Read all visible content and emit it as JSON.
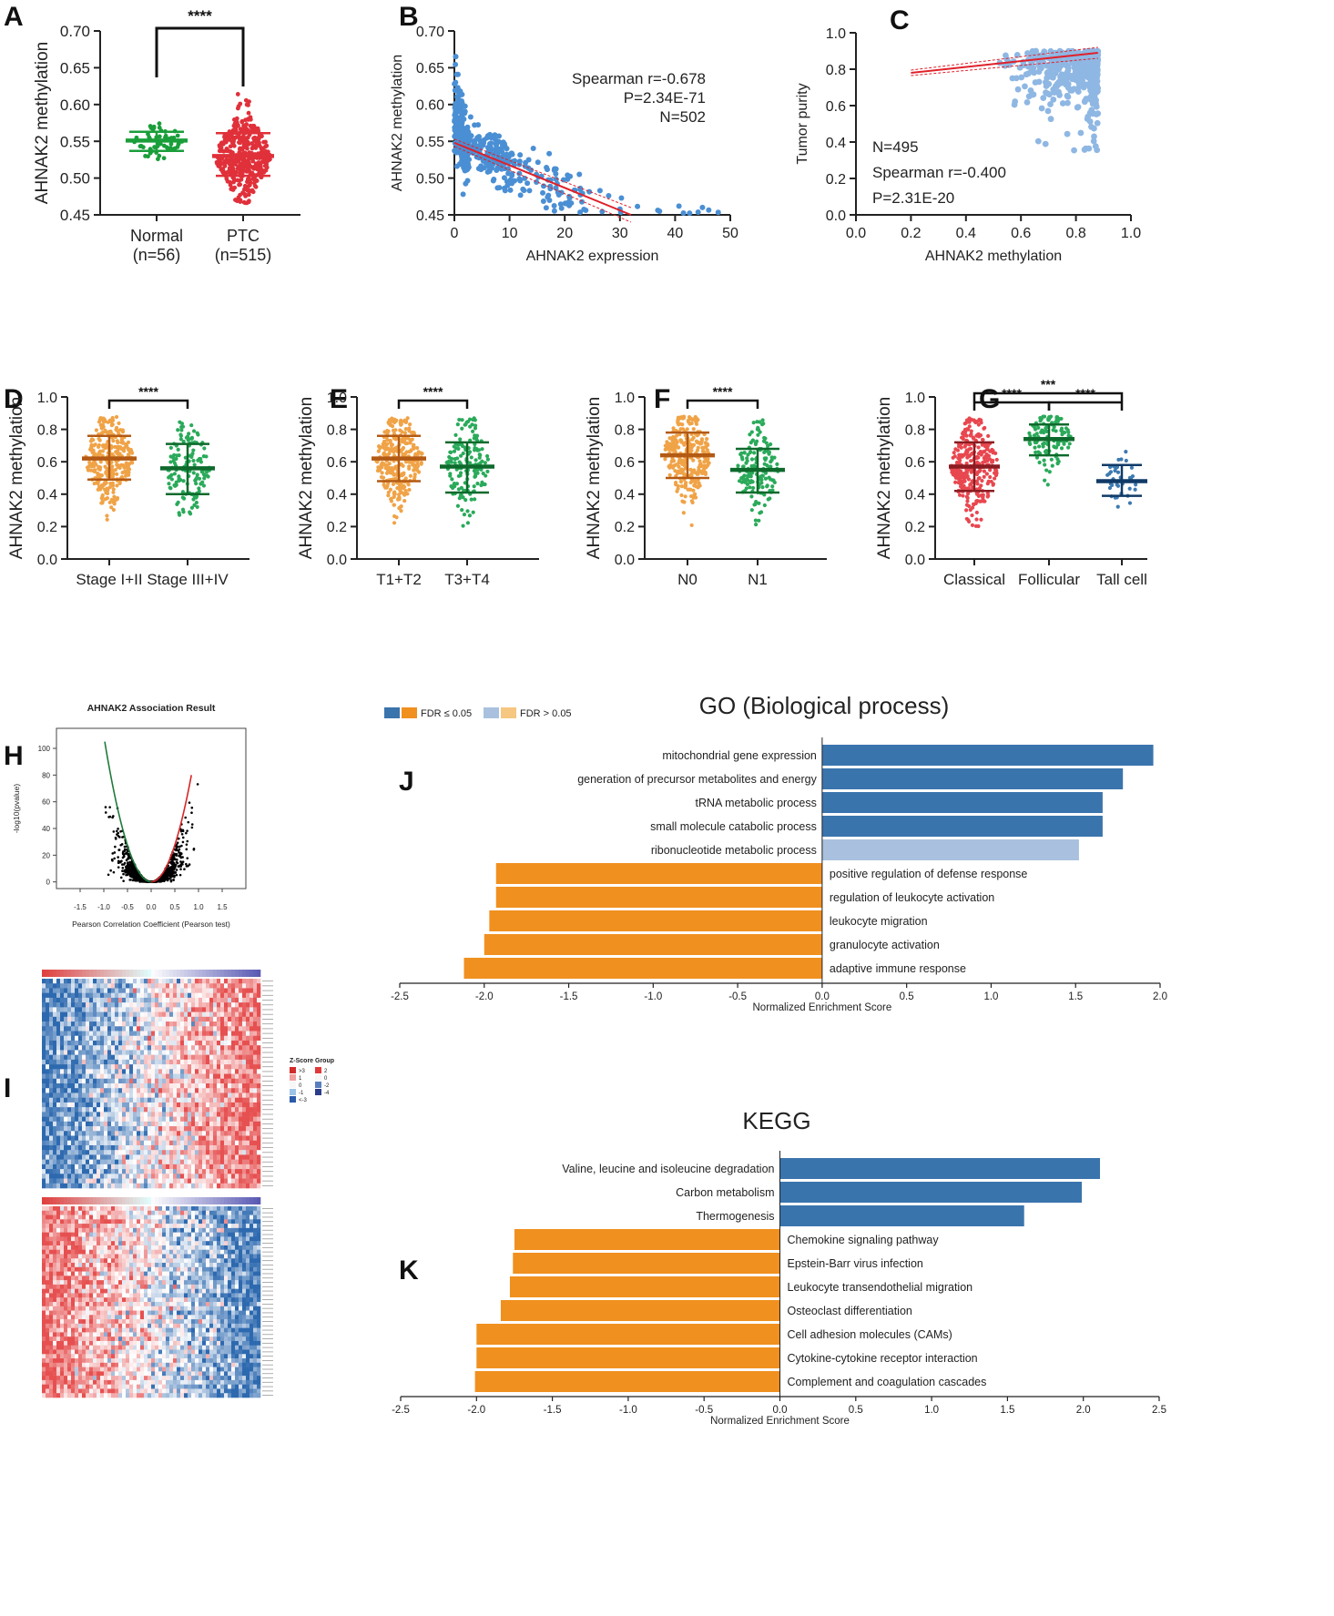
{
  "chart_data": [
    {
      "panel": "A",
      "type": "scatter",
      "ylabel": "AHNAK2 methylation",
      "ylim": [
        0.45,
        0.7
      ],
      "yticks": [
        "0.45",
        "0.50",
        "0.55",
        "0.60",
        "0.65",
        "0.70"
      ],
      "groups": [
        {
          "label": "Normal",
          "n_label": "(n=56)",
          "mean": 0.551,
          "sd_low": 0.537,
          "sd_high": 0.563,
          "min": 0.52,
          "max": 0.585,
          "color": "#1a9e3a"
        },
        {
          "label": "PTC",
          "n_label": "(n=515)",
          "mean": 0.53,
          "sd_low": 0.503,
          "sd_high": 0.561,
          "min": 0.465,
          "max": 0.685,
          "color": "#e0303a"
        }
      ],
      "significance": "****"
    },
    {
      "panel": "B",
      "type": "scatter",
      "xlabel": "AHNAK2 expression",
      "ylabel": "AHNAK2 methylation",
      "xlim": [
        0,
        50
      ],
      "ylim": [
        0.45,
        0.7
      ],
      "xticks": [
        "0",
        "10",
        "20",
        "30",
        "40",
        "50"
      ],
      "yticks": [
        "0.45",
        "0.50",
        "0.55",
        "0.60",
        "0.65",
        "0.70"
      ],
      "annotations": [
        "Spearman r=-0.678",
        "P=2.34E-71",
        "N=502"
      ],
      "fit": {
        "x0": 0,
        "y0": 0.548,
        "x1": 32,
        "y1": 0.45
      },
      "color": "#4a8fd4"
    },
    {
      "panel": "C",
      "type": "scatter",
      "xlabel": "AHNAK2 methylation",
      "ylabel": "Tumor purity",
      "xlim": [
        0.0,
        1.0
      ],
      "ylim": [
        0.0,
        1.0
      ],
      "xticks": [
        "0.0",
        "0.2",
        "0.4",
        "0.6",
        "0.8",
        "1.0"
      ],
      "yticks": [
        "0.0",
        "0.2",
        "0.4",
        "0.6",
        "0.8",
        "1.0"
      ],
      "annotations": [
        "N=495",
        "Spearman r=-0.400",
        "P=2.31E-20"
      ],
      "fit": {
        "x0": 0.2,
        "y0": 0.78,
        "x1": 0.88,
        "y1": 0.89
      },
      "color": "#8fb7e3"
    },
    {
      "panel": "D",
      "type": "scatter",
      "ylabel": "AHNAK2 methylation",
      "ylim": [
        0.0,
        1.0
      ],
      "yticks": [
        "0.0",
        "0.2",
        "0.4",
        "0.6",
        "0.8",
        "1.0"
      ],
      "groups": [
        {
          "label": "Stage I+II",
          "mean": 0.62,
          "sd_low": 0.49,
          "sd_high": 0.76,
          "min": 0.2,
          "max": 0.88,
          "color": "#f0a347",
          "bar": "#b35a14"
        },
        {
          "label": "Stage III+IV",
          "mean": 0.56,
          "sd_low": 0.4,
          "sd_high": 0.71,
          "min": 0.27,
          "max": 0.86,
          "color": "#2aaa5a",
          "bar": "#0e6a2c"
        }
      ],
      "significance": [
        {
          "from": 0,
          "to": 1,
          "text": "****"
        }
      ]
    },
    {
      "panel": "E",
      "type": "scatter",
      "ylabel": "AHNAK2 methylation",
      "ylim": [
        0.0,
        1.0
      ],
      "yticks": [
        "0.0",
        "0.2",
        "0.4",
        "0.6",
        "0.8",
        "1.0"
      ],
      "groups": [
        {
          "label": "T1+T2",
          "mean": 0.62,
          "sd_low": 0.48,
          "sd_high": 0.76,
          "min": 0.2,
          "max": 0.87,
          "color": "#f0a347",
          "bar": "#b35a14"
        },
        {
          "label": "T3+T4",
          "mean": 0.57,
          "sd_low": 0.41,
          "sd_high": 0.72,
          "min": 0.2,
          "max": 0.87,
          "color": "#2aaa5a",
          "bar": "#0e6a2c"
        }
      ],
      "significance": [
        {
          "from": 0,
          "to": 1,
          "text": "****"
        }
      ]
    },
    {
      "panel": "F",
      "type": "scatter",
      "ylabel": "AHNAK2 methylation",
      "ylim": [
        0.0,
        1.0
      ],
      "yticks": [
        "0.0",
        "0.2",
        "0.4",
        "0.6",
        "0.8",
        "1.0"
      ],
      "groups": [
        {
          "label": "N0",
          "mean": 0.64,
          "sd_low": 0.5,
          "sd_high": 0.78,
          "min": 0.2,
          "max": 0.88,
          "color": "#f0a347",
          "bar": "#b35a14"
        },
        {
          "label": "N1",
          "mean": 0.55,
          "sd_low": 0.41,
          "sd_high": 0.68,
          "min": 0.2,
          "max": 0.86,
          "color": "#2aaa5a",
          "bar": "#0e6a2c"
        }
      ],
      "significance": [
        {
          "from": 0,
          "to": 1,
          "text": "****"
        }
      ]
    },
    {
      "panel": "G",
      "type": "scatter",
      "ylabel": "AHNAK2 methylation",
      "ylim": [
        0.0,
        1.0
      ],
      "yticks": [
        "0.0",
        "0.2",
        "0.4",
        "0.6",
        "0.8",
        "1.0"
      ],
      "groups": [
        {
          "label": "Classical",
          "mean": 0.57,
          "sd_low": 0.42,
          "sd_high": 0.72,
          "min": 0.2,
          "max": 0.87,
          "color": "#e8474f",
          "bar": "#8a1c22"
        },
        {
          "label": "Follicular",
          "mean": 0.74,
          "sd_low": 0.64,
          "sd_high": 0.83,
          "min": 0.37,
          "max": 0.88,
          "color": "#2aaa5a",
          "bar": "#0e6a2c"
        },
        {
          "label": "Tall cell",
          "mean": 0.48,
          "sd_low": 0.39,
          "sd_high": 0.58,
          "min": 0.3,
          "max": 0.75,
          "color": "#3d7ab0",
          "bar": "#103a66"
        }
      ],
      "significance": [
        {
          "from": 0,
          "to": 2,
          "text": "***"
        },
        {
          "from": 0,
          "to": 1,
          "text": "****"
        },
        {
          "from": 1,
          "to": 2,
          "text": "****"
        }
      ]
    },
    {
      "panel": "H",
      "type": "scatter",
      "title": "AHNAK2 Association Result",
      "xlabel": "Pearson Correlation Coefficient (Pearson test)",
      "ylabel": "-log10(pvalue)",
      "xlim": [
        -2.0,
        2.0
      ],
      "ylim": [
        -5,
        115
      ],
      "xticks": [
        "-1.5",
        "-1.0",
        "-0.5",
        "0.0",
        "0.5",
        "1.0",
        "1.5"
      ],
      "yticks": [
        "0",
        "20",
        "40",
        "60",
        "80",
        "100"
      ]
    },
    {
      "panel": "I",
      "type": "heatmap",
      "legend_title": "Z-Score Group",
      "zscore_labels": [
        ">3",
        "1",
        "0",
        "-1",
        "<-3"
      ],
      "group_labels": [
        "2",
        "0",
        "-2",
        "-4"
      ]
    },
    {
      "panel": "J",
      "type": "bar",
      "title": "GO (Biological process)",
      "xlabel": "Normalized Enrichment Score",
      "xlim": [
        -2.5,
        2.0
      ],
      "xticks": [
        "-2.5",
        "-2.0",
        "-1.5",
        "-1.0",
        "-0.5",
        "0.0",
        "0.5",
        "1.0",
        "1.5",
        "2.0"
      ],
      "legend": [
        "FDR ≤ 0.05",
        "FDR > 0.05"
      ],
      "categories": [
        "mitochondrial gene expression",
        "generation of precursor metabolites and energy",
        "tRNA metabolic process",
        "small molecule catabolic process",
        "ribonucleotide metabolic process",
        "positive regulation of defense response",
        "regulation of leukocyte activation",
        "leukocyte migration",
        "granulocyte activation",
        "adaptive immune response"
      ],
      "values": [
        1.96,
        1.78,
        1.66,
        1.66,
        1.52,
        -1.93,
        -1.93,
        -1.97,
        -2.0,
        -2.12
      ],
      "significant": [
        true,
        true,
        true,
        true,
        false,
        true,
        true,
        true,
        true,
        true
      ]
    },
    {
      "panel": "K",
      "type": "bar",
      "title": "KEGG",
      "xlabel": "Normalized Enrichment Score",
      "xlim": [
        -2.5,
        2.5
      ],
      "xticks": [
        "-2.5",
        "-2.0",
        "-1.5",
        "-1.0",
        "-0.5",
        "0.0",
        "0.5",
        "1.0",
        "1.5",
        "2.0",
        "2.5"
      ],
      "categories": [
        "Valine, leucine and isoleucine degradation",
        "Carbon metabolism",
        "Thermogenesis",
        "Chemokine signaling pathway",
        "Epstein-Barr virus infection",
        "Leukocyte transendothelial migration",
        "Osteoclast differentiation",
        "Cell adhesion molecules (CAMs)",
        "Cytokine-cytokine receptor interaction",
        "Complement and coagulation cascades"
      ],
      "values": [
        2.11,
        1.99,
        1.61,
        -1.75,
        -1.76,
        -1.78,
        -1.84,
        -2.0,
        -2.0,
        -2.01
      ]
    }
  ],
  "colors": {
    "pos_sig": "#3a74ad",
    "neg_sig": "#f0901f",
    "pos_nonsig": "#a9c1de",
    "neg_nonsig": "#f5c780",
    "heat_red": "#e04040",
    "heat_blue": "#2e5fa8",
    "fit_line": "#e0202a"
  }
}
